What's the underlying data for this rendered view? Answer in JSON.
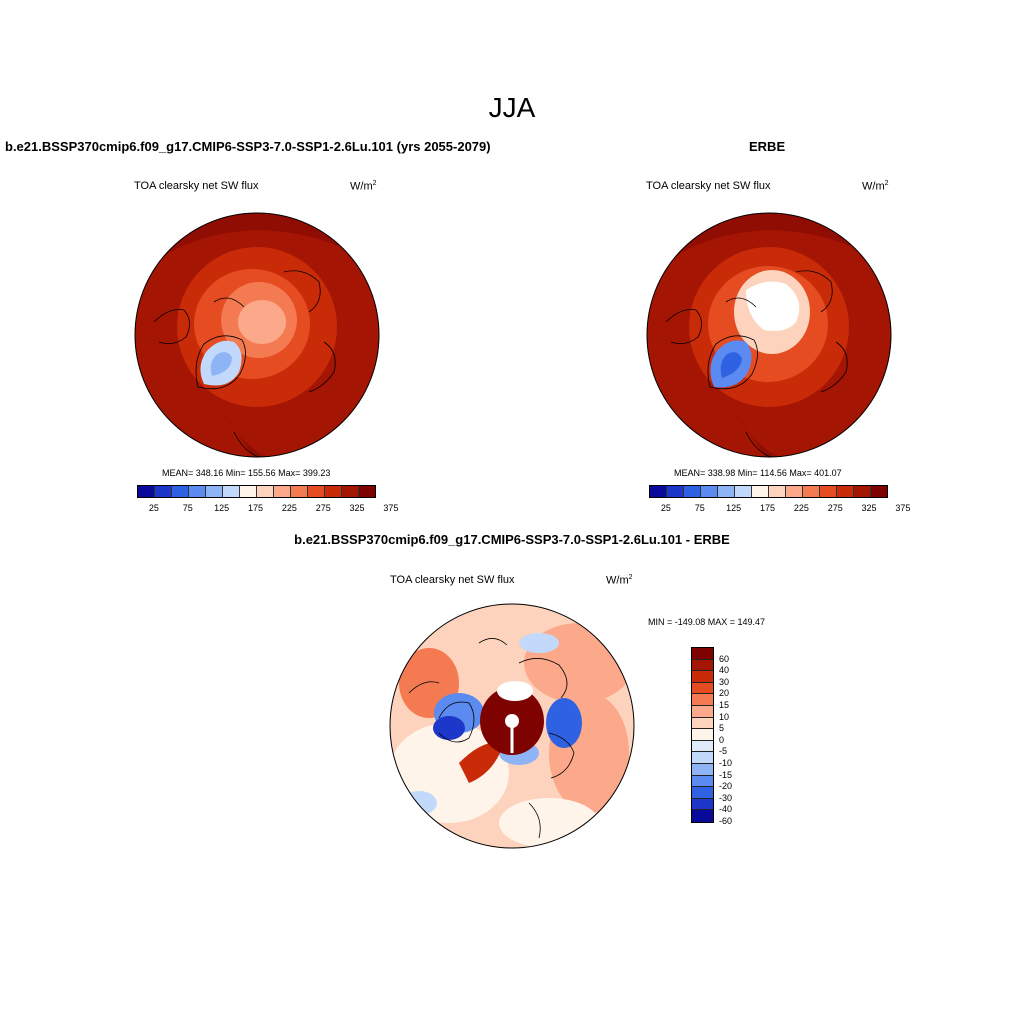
{
  "season": "JJA",
  "colors": {
    "abs_scale": [
      "#0a0a9a",
      "#1c37c9",
      "#2f62e2",
      "#5b8bf0",
      "#8fb4f6",
      "#c2d9fb",
      "#fff4ea",
      "#fdd3bd",
      "#fba98a",
      "#f47a52",
      "#e54c22",
      "#c92a08",
      "#a51504",
      "#7e0300"
    ],
    "diff_scale": [
      "#7e0300",
      "#a51504",
      "#c92a08",
      "#e54c22",
      "#f47a52",
      "#fba98a",
      "#fdd3bd",
      "#fff4ea",
      "#dfeafb",
      "#c2d9fb",
      "#8fb4f6",
      "#5b8bf0",
      "#2f62e2",
      "#1c37c9",
      "#0a0a9a"
    ]
  },
  "panels": {
    "model": {
      "title": "b.e21.BSSP370cmip6.f09_g17.CMIP6-SSP3-7.0-SSP1-2.6Lu.101 (yrs 2055-2079)",
      "variable": "TOA clearsky net SW flux",
      "units_base": "W/m",
      "units_exp": "2",
      "stats": "MEAN= 348.16  Min= 155.56  Max= 399.23",
      "colorbar_labels": [
        "25",
        "75",
        "125",
        "175",
        "225",
        "275",
        "325",
        "375"
      ]
    },
    "obs": {
      "title": "ERBE",
      "variable": "TOA clearsky net SW flux",
      "units_base": "W/m",
      "units_exp": "2",
      "stats": "MEAN= 338.98  Min= 114.56  Max= 401.07",
      "colorbar_labels": [
        "25",
        "75",
        "125",
        "175",
        "225",
        "275",
        "325",
        "375"
      ]
    },
    "diff": {
      "title": "b.e21.BSSP370cmip6.f09_g17.CMIP6-SSP3-7.0-SSP1-2.6Lu.101 - ERBE",
      "variable": "TOA clearsky net SW flux",
      "units_base": "W/m",
      "units_exp": "2",
      "minmax": "MIN = -149.08 MAX = 149.47",
      "colorbar_labels": [
        "60",
        "40",
        "30",
        "20",
        "15",
        "10",
        "5",
        "0",
        "-5",
        "-10",
        "-15",
        "-20",
        "-30",
        "-40",
        "-60"
      ]
    }
  }
}
